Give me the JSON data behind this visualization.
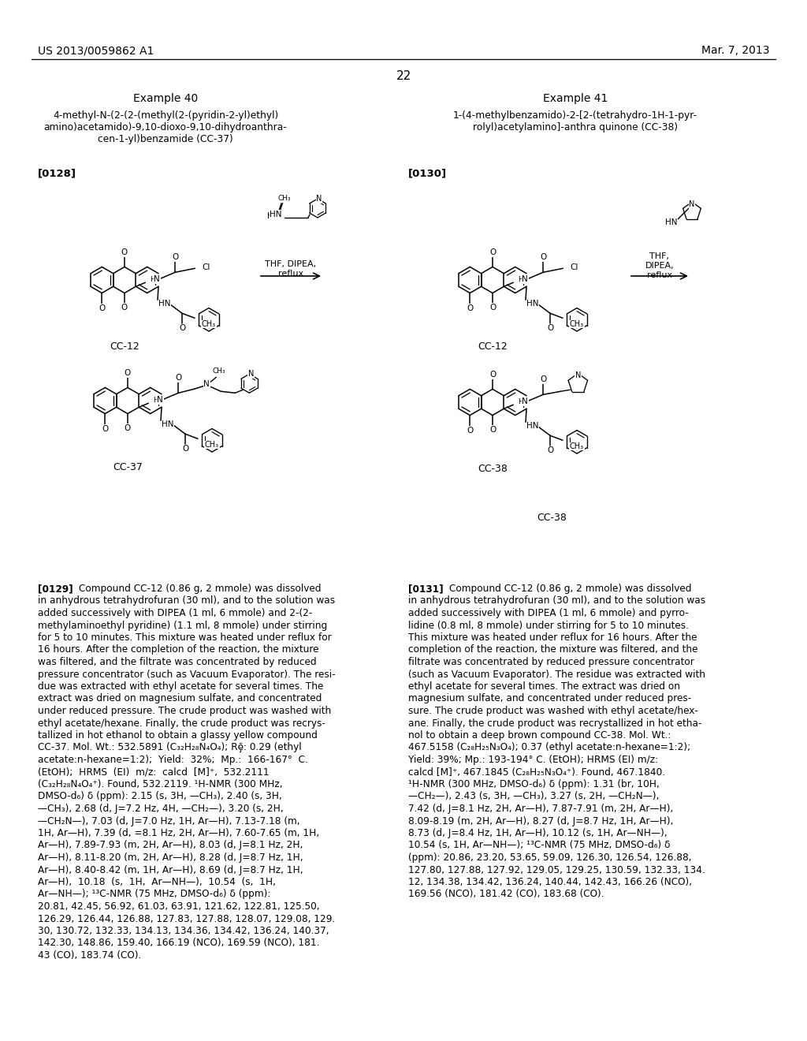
{
  "background_color": "#ffffff",
  "header_left": "US 2013/0059862 A1",
  "header_right": "Mar. 7, 2013",
  "page_number": "22",
  "example40_title": "Example 40",
  "example41_title": "Example 41",
  "example40_name": "4-methyl-N-(2-(2-(methyl(2-(pyridin-2-yl)ethyl)\namino)acetamido)-9,10-dioxo-9,10-dihydroanthra-\ncen-1-yl)benzamide (CC-37)",
  "example41_name": "1-(4-methylbenzamido)-2-[2-(tetrahydro-1H-1-pyr-\nrolyl)acetylamino]-anthra quinone (CC-38)",
  "tag0128": "[0128]",
  "tag0129": "[0129]",
  "tag0130": "[0130]",
  "tag0131": "[0131]",
  "cc12_label": "CC-12",
  "cc37_label": "CC-37",
  "cc38_label": "CC-38",
  "rxn_left1": "THF, DIPEA,",
  "rxn_left2": "reflux",
  "rxn_right1": "THF,",
  "rxn_right2": "DIPEA,",
  "rxn_right3": "reflux",
  "para0129": "[0129]   Compound CC-12 (0.86 g, 2 mmole) was dissolved\nin anhydrous tetrahydrofuran (30 ml), and to the solution was\nadded successively with DIPEA (1 ml, 6 mmole) and 2-(2-\nmethylaminoethyl pyridine) (1.1 ml, 8 mmole) under stirring\nfor 5 to 10 minutes. This mixture was heated under reflux for\n16 hours. After the completion of the reaction, the mixture\nwas filtered, and the filtrate was concentrated by reduced\npressure concentrator (such as Vacuum Evaporator). The resi-\ndue was extracted with ethyl acetate for several times. The\nextract was dried on magnesium sulfate, and concentrated\nunder reduced pressure. The crude product was washed with\nethyl acetate/hexane. Finally, the crude product was recrys-\ntallized in hot ethanol to obtain a glassy yellow compound\nCC-37. Mol. Wt.: 532.5891 (C₃₂H₂₈N₄O₄); Rḝ: 0.29 (ethyl\nacetate:n-hexane=1:2);  Yield:  32%;  Mp.:  166-167°  C.\n(EtOH);  HRMS  (EI)  m/z:  calcd  [M]⁺,  532.2111\n(C₃₂H₂₈N₄O₄⁺). Found, 532.2119. ¹H-NMR (300 MHz,\nDMSO-d₆) δ (ppm): 2.15 (s, 3H, —CH₃), 2.40 (s, 3H,\n—CH₃), 2.68 (d, J=7.2 Hz, 4H, —CH₂—), 3.20 (s, 2H,\n—CH₂N—), 7.03 (d, J=7.0 Hz, 1H, Ar—H), 7.13-7.18 (m,\n1H, Ar—H), 7.39 (d, =8.1 Hz, 2H, Ar—H), 7.60-7.65 (m, 1H,\nAr—H), 7.89-7.93 (m, 2H, Ar—H), 8.03 (d, J=8.1 Hz, 2H,\nAr—H), 8.11-8.20 (m, 2H, Ar—H), 8.28 (d, J=8.7 Hz, 1H,\nAr—H), 8.40-8.42 (m, 1H, Ar—H), 8.69 (d, J=8.7 Hz, 1H,\nAr—H),  10.18  (s,  1H,  Ar—NH—),  10.54  (s,  1H,\nAr—NH—); ¹³C-NMR (75 MHz, DMSO-d₆) δ (ppm):\n20.81, 42.45, 56.92, 61.03, 63.91, 121.62, 122.81, 125.50,\n126.29, 126.44, 126.88, 127.83, 127.88, 128.07, 129.08, 129.\n30, 130.72, 132.33, 134.13, 134.36, 134.42, 136.24, 140.37,\n142.30, 148.86, 159.40, 166.19 (NCO), 169.59 (NCO), 181.\n43 (CO), 183.74 (CO).",
  "para0131": "[0131]   Compound CC-12 (0.86 g, 2 mmole) was dissolved\nin anhydrous tetrahydrofuran (30 ml), and to the solution was\nadded successively with DIPEA (1 ml, 6 mmole) and pyrro-\nlidine (0.8 ml, 8 mmole) under stirring for 5 to 10 minutes.\nThis mixture was heated under reflux for 16 hours. After the\ncompletion of the reaction, the mixture was filtered, and the\nfiltrate was concentrated by reduced pressure concentrator\n(such as Vacuum Evaporator). The residue was extracted with\nethyl acetate for several times. The extract was dried on\nmagnesium sulfate, and concentrated under reduced pres-\nsure. The crude product was washed with ethyl acetate/hex-\nane. Finally, the crude product was recrystallized in hot etha-\nnol to obtain a deep brown compound CC-38. Mol. Wt.:\n467.5158 (C₂₈H₂₅N₃O₄); 0.37 (ethyl acetate:n-hexane=1:2);\nYield: 39%; Mp.: 193-194° C. (EtOH); HRMS (EI) m/z:\ncalcd [M]⁺, 467.1845 (C₂₈H₂₅N₃O₄⁺). Found, 467.1840.\n¹H-NMR (300 MHz, DMSO-d₆) δ (ppm): 1.31 (br, 10H,\n—CH₂—), 2.43 (s, 3H, —CH₃), 3.27 (s, 2H, —CH₂N—),\n7.42 (d, J=8.1 Hz, 2H, Ar—H), 7.87-7.91 (m, 2H, Ar—H),\n8.09-8.19 (m, 2H, Ar—H), 8.27 (d, J=8.7 Hz, 1H, Ar—H),\n8.73 (d, J=8.4 Hz, 1H, Ar—H), 10.12 (s, 1H, Ar—NH—),\n10.54 (s, 1H, Ar—NH—); ¹³C-NMR (75 MHz, DMSO-d₆) δ\n(ppm): 20.86, 23.20, 53.65, 59.09, 126.30, 126.54, 126.88,\n127.80, 127.88, 127.92, 129.05, 129.25, 130.59, 132.33, 134.\n12, 134.38, 134.42, 136.24, 140.44, 142.43, 166.26 (NCO),\n169.56 (NCO), 181.42 (CO), 183.68 (CO)."
}
